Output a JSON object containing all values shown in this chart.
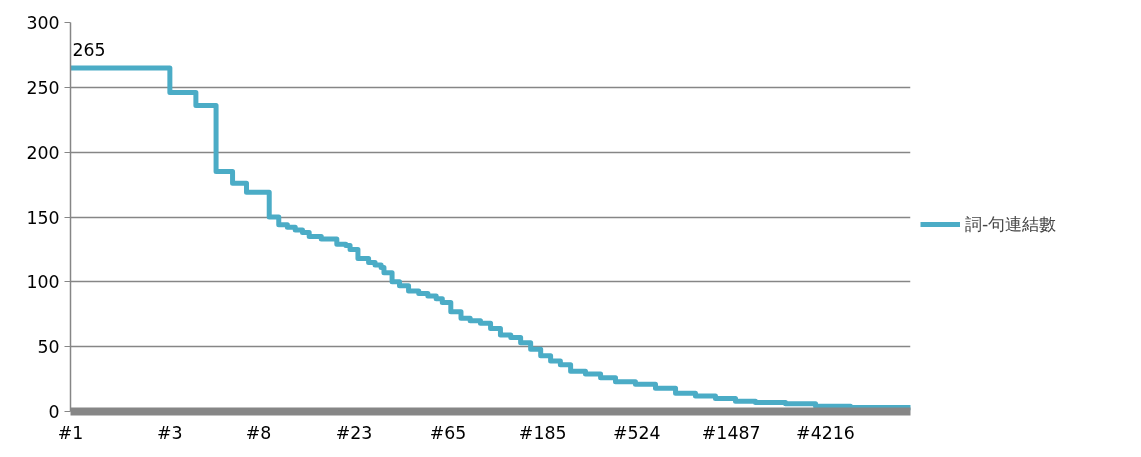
{
  "chart_data": {
    "type": "step",
    "log": "x",
    "xlim": [
      1,
      10800
    ],
    "ylim": [
      0,
      300
    ],
    "xticks": [
      {
        "value": 1,
        "label": "#1"
      },
      {
        "value": 3,
        "label": "#3"
      },
      {
        "value": 8,
        "label": "#8"
      },
      {
        "value": 23,
        "label": "#23"
      },
      {
        "value": 65,
        "label": "#65"
      },
      {
        "value": 185,
        "label": "#185"
      },
      {
        "value": 524,
        "label": "#524"
      },
      {
        "value": 1487,
        "label": "#1487"
      },
      {
        "value": 4216,
        "label": "#4216"
      }
    ],
    "yticks": [
      0,
      50,
      100,
      150,
      200,
      250,
      300
    ],
    "grid": "y",
    "legend": "right",
    "series": [
      {
        "name": "詞-句連結數",
        "color": "#4bacc6",
        "x": [
          1,
          2,
          3,
          4,
          5,
          6,
          7,
          9,
          10,
          11,
          12,
          13,
          14,
          16,
          19,
          21,
          22,
          24,
          27,
          29,
          31,
          32,
          35,
          38,
          42,
          47,
          52,
          57,
          61,
          67,
          75,
          83,
          93,
          104,
          116,
          130,
          145,
          162,
          181,
          202,
          225,
          252,
          297,
          351,
          414,
          516,
          644,
          804,
          1002,
          1250,
          1560,
          1946,
          2713,
          3780,
          5563,
          10800
        ],
        "values": [
          265,
          265,
          246,
          236,
          185,
          176,
          169,
          150,
          144,
          142,
          140,
          138,
          135,
          133,
          129,
          128,
          125,
          118,
          115,
          113,
          111,
          107,
          100,
          97,
          93,
          91,
          89,
          87,
          84,
          77,
          72,
          70,
          68,
          64,
          59,
          57,
          53,
          48,
          43,
          39,
          36,
          31,
          29,
          26,
          23,
          21,
          18,
          14,
          12,
          10,
          8,
          7,
          6,
          4,
          3,
          1
        ]
      }
    ],
    "annotations": [
      {
        "text": "265",
        "x": 1,
        "y": 265
      }
    ]
  }
}
